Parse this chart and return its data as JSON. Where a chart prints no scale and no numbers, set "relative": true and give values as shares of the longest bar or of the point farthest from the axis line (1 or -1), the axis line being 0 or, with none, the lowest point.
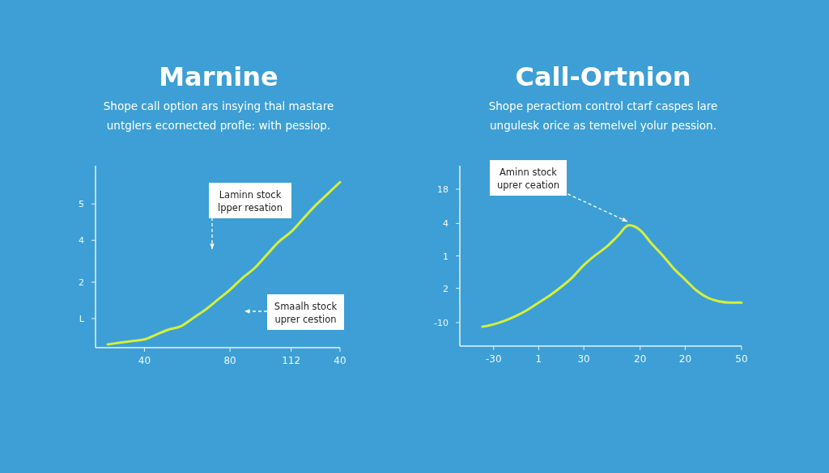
{
  "chart_data": [
    {
      "type": "line",
      "relative": true,
      "title": "Marnine",
      "subtitle": "Shope call option ars insying thal mastare untglers ecornected profle: with pessiop.",
      "annotations": [
        "Laminn stock lpper resation",
        "Smaalh stock uprer cestion",
        "5",
        "4",
        "2",
        "L"
      ],
      "categories": [
        null,
        null,
        null,
        null,
        "40",
        null,
        null,
        null,
        null,
        null,
        null,
        "80",
        null,
        null,
        null,
        null,
        "112",
        null,
        null,
        null,
        "40"
      ],
      "series": [
        {
          "color": "#d6ef3a",
          "values": [
            null,
            0.02,
            0.03,
            0.04,
            0.05,
            0.08,
            0.11,
            0.13,
            0.18,
            0.23,
            0.29,
            0.35,
            0.42,
            0.48,
            0.56,
            0.64,
            0.7,
            0.78,
            0.86,
            0.93,
            1
          ]
        }
      ]
    },
    {
      "type": "line",
      "relative": true,
      "title": "Call-Ortnion",
      "subtitle": "Shope peractiom control ctarf caspes lare ungulesk orice as temelvel yolur pession.",
      "annotations": [
        "Aminn stock uprer ceation",
        "18",
        "4",
        "1",
        "2",
        "-10"
      ],
      "categories": [
        null,
        null,
        null,
        "-30",
        null,
        null,
        null,
        "1",
        null,
        null,
        null,
        "30",
        null,
        null,
        null,
        null,
        "20",
        null,
        null,
        null,
        "20",
        null,
        null,
        null,
        null,
        "50"
      ],
      "series": [
        {
          "color": "#d6ef3a",
          "values": [
            null,
            null,
            0.16,
            0.18,
            0.21,
            0.25,
            0.3,
            0.36,
            0.42,
            0.49,
            0.57,
            0.67,
            0.75,
            0.82,
            0.91,
            1,
            0.96,
            0.85,
            0.75,
            0.64,
            0.55,
            0.46,
            0.4,
            0.37,
            0.36,
            0.36
          ]
        }
      ]
    }
  ]
}
